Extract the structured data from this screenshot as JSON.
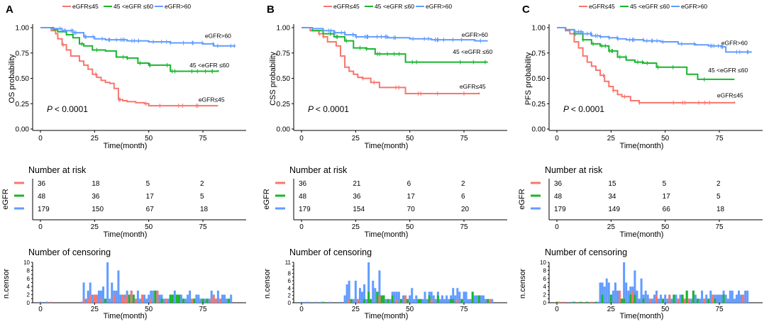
{
  "colors": {
    "low": "#F8766D",
    "mid": "#19B62E",
    "high": "#619CFF"
  },
  "legend": [
    "eGFR≤45",
    "45 <eGFR ≤60",
    "eGFR>60"
  ],
  "group_labels": {
    "low": "eGFR≤45",
    "mid": "45 <eGFR ≤60",
    "high": "eGFR>60"
  },
  "risk_title": "Number at risk",
  "risk_ylabel": "eGFR",
  "censor_title": "Number of censoring",
  "censor_ylabel": "n.censor",
  "xlabel": "Time(month)",
  "x_ticks": [
    0,
    25,
    50,
    75
  ],
  "y_ticks": [
    "0.00",
    "0.25",
    "0.50",
    "0.75",
    "1.00"
  ],
  "chart_data": [
    {
      "type": "line",
      "panel": "A",
      "title": "",
      "ylabel": "OS probability",
      "xlabel": "Time(month)",
      "xlim": [
        0,
        92
      ],
      "ylim": [
        0,
        1
      ],
      "p_value": "< 0.0001",
      "series": [
        {
          "name": "eGFR≤45",
          "key": "low",
          "x": [
            0,
            5,
            7,
            8,
            10,
            12,
            14,
            18,
            20,
            22,
            24,
            26,
            28,
            30,
            32,
            34,
            36,
            38,
            40,
            42,
            44,
            46,
            48,
            50,
            82
          ],
          "y": [
            1.0,
            0.97,
            0.94,
            0.89,
            0.83,
            0.78,
            0.72,
            0.67,
            0.63,
            0.59,
            0.54,
            0.51,
            0.48,
            0.46,
            0.45,
            0.4,
            0.29,
            0.28,
            0.27,
            0.27,
            0.26,
            0.26,
            0.25,
            0.23,
            0.23
          ],
          "label_at": [
            79,
            0.27
          ]
        },
        {
          "name": "45 <eGFR ≤60",
          "key": "mid",
          "x": [
            0,
            6,
            8,
            12,
            15,
            18,
            20,
            24,
            30,
            35,
            40,
            45,
            50,
            60,
            82
          ],
          "y": [
            1.0,
            0.98,
            0.96,
            0.93,
            0.9,
            0.84,
            0.82,
            0.78,
            0.77,
            0.71,
            0.7,
            0.65,
            0.63,
            0.57,
            0.58
          ],
          "label_at": [
            78,
            0.61
          ]
        },
        {
          "name": "eGFR>60",
          "key": "high",
          "x": [
            0,
            5,
            10,
            15,
            20,
            25,
            30,
            40,
            50,
            60,
            70,
            75,
            80,
            90
          ],
          "y": [
            1.0,
            0.99,
            0.97,
            0.95,
            0.91,
            0.89,
            0.88,
            0.87,
            0.86,
            0.85,
            0.85,
            0.84,
            0.82,
            0.82
          ],
          "label_at": [
            82,
            0.9
          ]
        }
      ],
      "risk": {
        "low": [
          36,
          18,
          5,
          2
        ],
        "mid": [
          48,
          36,
          17,
          5
        ],
        "high": [
          179,
          150,
          67,
          18
        ]
      },
      "censor_ylim": [
        0,
        10
      ],
      "censor_y_ticks": [
        0,
        1,
        2,
        3,
        4,
        5,
        6,
        7,
        8,
        9,
        10
      ],
      "censor_y_labels": [
        "0",
        "",
        "2",
        "",
        "4",
        "",
        "6",
        "",
        "8",
        "",
        "10"
      ]
    },
    {
      "type": "line",
      "panel": "B",
      "title": "",
      "ylabel": "CSS probability",
      "xlabel": "Time(month)",
      "xlim": [
        0,
        92
      ],
      "ylim": [
        0,
        1
      ],
      "p_value": "< 0.0001",
      "series": [
        {
          "name": "eGFR≤45",
          "key": "low",
          "x": [
            0,
            4,
            8,
            10,
            12,
            16,
            18,
            20,
            22,
            24,
            26,
            28,
            32,
            36,
            48,
            82
          ],
          "y": [
            1.0,
            0.97,
            0.94,
            0.91,
            0.86,
            0.82,
            0.72,
            0.61,
            0.57,
            0.54,
            0.51,
            0.5,
            0.46,
            0.41,
            0.35,
            0.36
          ],
          "label_at": [
            79,
            0.4
          ]
        },
        {
          "name": "45 <eGFR ≤60",
          "key": "mid",
          "x": [
            0,
            5,
            10,
            15,
            20,
            24,
            30,
            34,
            40,
            48,
            60,
            86
          ],
          "y": [
            1.0,
            0.97,
            0.94,
            0.91,
            0.87,
            0.8,
            0.79,
            0.74,
            0.74,
            0.66,
            0.66,
            0.66
          ],
          "label_at": [
            79,
            0.74
          ]
        },
        {
          "name": "eGFR>60",
          "key": "high",
          "x": [
            0,
            5,
            10,
            15,
            20,
            25,
            30,
            40,
            50,
            60,
            70,
            80,
            86
          ],
          "y": [
            1.0,
            0.99,
            0.97,
            0.95,
            0.93,
            0.91,
            0.91,
            0.9,
            0.89,
            0.88,
            0.88,
            0.87,
            0.87
          ],
          "label_at": [
            80,
            0.91
          ]
        }
      ],
      "risk": {
        "low": [
          36,
          21,
          6,
          2
        ],
        "mid": [
          48,
          36,
          17,
          6
        ],
        "high": [
          179,
          154,
          70,
          20
        ]
      },
      "censor_ylim": [
        0,
        11
      ],
      "censor_y_ticks": [
        0,
        1,
        2,
        3,
        4,
        5,
        6,
        7,
        8,
        9,
        10,
        11
      ],
      "censor_y_labels": [
        "0",
        "",
        "2",
        "",
        "4",
        "",
        "6",
        "",
        "8",
        "",
        "",
        "11"
      ]
    },
    {
      "type": "line",
      "panel": "C",
      "title": "",
      "ylabel": "PFS probability",
      "xlabel": "Time(month)",
      "xlim": [
        0,
        92
      ],
      "ylim": [
        0,
        1
      ],
      "p_value": "< 0.0001",
      "series": [
        {
          "name": "eGFR≤45",
          "key": "low",
          "x": [
            0,
            4,
            6,
            8,
            10,
            12,
            14,
            16,
            18,
            20,
            22,
            24,
            26,
            28,
            30,
            34,
            38,
            82
          ],
          "y": [
            1.0,
            0.97,
            0.94,
            0.86,
            0.8,
            0.72,
            0.66,
            0.62,
            0.58,
            0.53,
            0.47,
            0.42,
            0.38,
            0.34,
            0.32,
            0.28,
            0.26,
            0.27
          ],
          "label_at": [
            80,
            0.31
          ]
        },
        {
          "name": "45 <eGFR ≤60",
          "key": "mid",
          "x": [
            0,
            4,
            8,
            12,
            16,
            20,
            24,
            28,
            32,
            36,
            40,
            46,
            50,
            60,
            65,
            82
          ],
          "y": [
            1.0,
            0.98,
            0.94,
            0.88,
            0.84,
            0.82,
            0.77,
            0.71,
            0.68,
            0.66,
            0.65,
            0.61,
            0.61,
            0.54,
            0.49,
            0.49
          ],
          "label_at": [
            79,
            0.56
          ]
        },
        {
          "name": "eGFR>60",
          "key": "high",
          "x": [
            0,
            4,
            8,
            12,
            16,
            20,
            24,
            28,
            32,
            40,
            48,
            56,
            64,
            70,
            76,
            78,
            90
          ],
          "y": [
            1.0,
            0.98,
            0.96,
            0.94,
            0.92,
            0.91,
            0.9,
            0.89,
            0.88,
            0.87,
            0.86,
            0.84,
            0.83,
            0.82,
            0.81,
            0.76,
            0.76
          ],
          "label_at": [
            82,
            0.83
          ]
        }
      ],
      "risk": {
        "low": [
          36,
          15,
          5,
          2
        ],
        "mid": [
          48,
          34,
          17,
          5
        ],
        "high": [
          179,
          149,
          66,
          18
        ]
      },
      "censor_ylim": [
        0,
        10
      ],
      "censor_y_ticks": [
        0,
        1,
        2,
        3,
        4,
        5,
        6,
        7,
        8,
        9,
        10
      ],
      "censor_y_labels": [
        "0",
        "",
        "2",
        "",
        "4",
        "",
        "6",
        "",
        "8",
        "",
        "10"
      ]
    }
  ]
}
